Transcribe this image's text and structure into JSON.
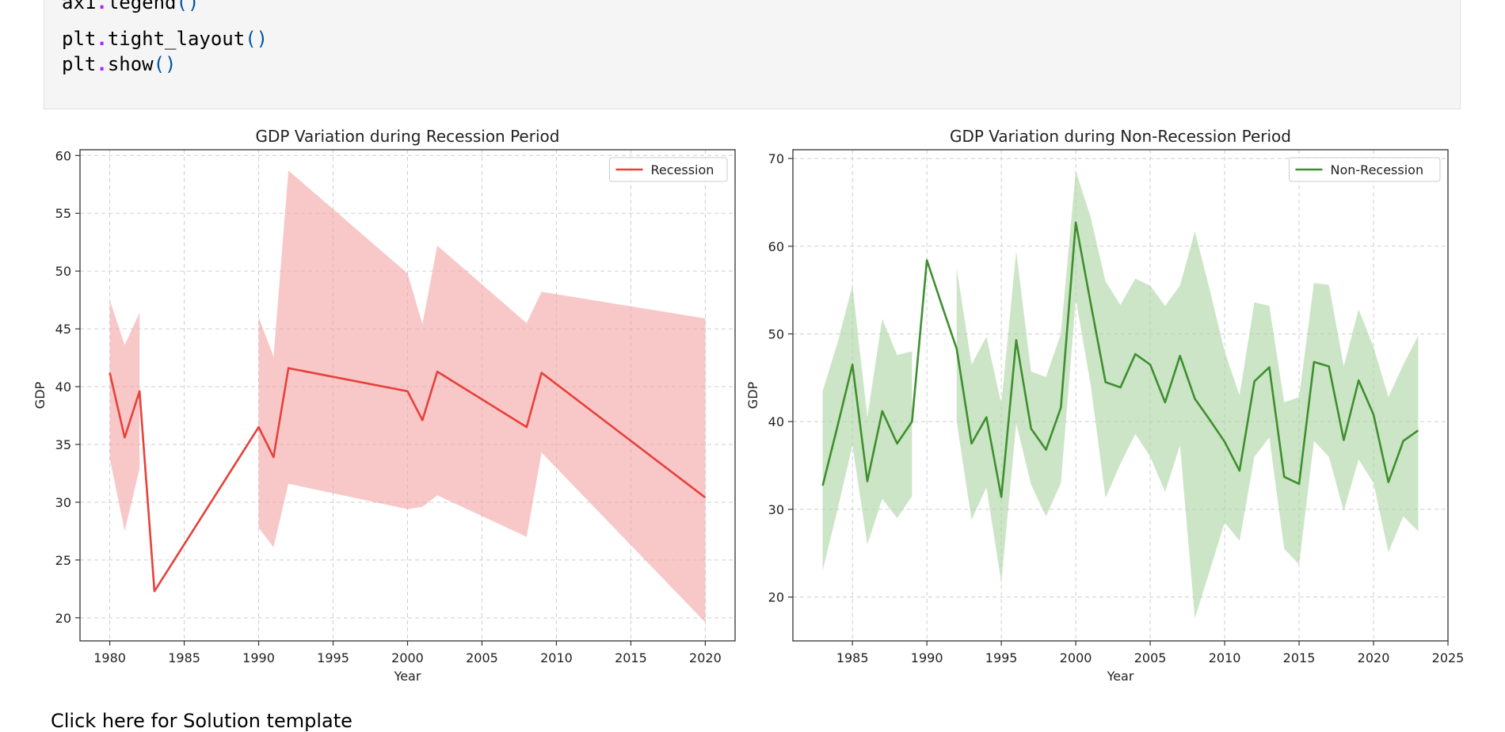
{
  "code": {
    "lines": [
      {
        "obj": "ax1",
        "method": "legend"
      },
      {
        "obj": "",
        "method": ""
      },
      {
        "obj": "plt",
        "method": "tight_layout"
      },
      {
        "obj": "plt",
        "method": "show"
      }
    ]
  },
  "footer": {
    "text": "Click here for Solution template"
  },
  "chart_data": [
    {
      "type": "line",
      "title": "GDP Variation during Recession Period",
      "xlabel": "Year",
      "ylabel": "GDP",
      "legend": {
        "entries": [
          "Recession"
        ],
        "placement": "top-right"
      },
      "grid": true,
      "xlim": [
        1978,
        2022
      ],
      "ylim": [
        18,
        60.5
      ],
      "xticks": [
        1980,
        1985,
        1990,
        1995,
        2000,
        2005,
        2010,
        2015,
        2020
      ],
      "yticks": [
        20,
        25,
        30,
        35,
        40,
        45,
        50,
        55,
        60
      ],
      "color": "#e8403a",
      "band_color": "#f4a3a3",
      "x": [
        1980,
        1981,
        1982,
        1983,
        1990,
        1991,
        1992,
        2000,
        2001,
        2002,
        2008,
        2009,
        2020
      ],
      "values": [
        41.2,
        35.6,
        39.6,
        22.3,
        36.5,
        33.9,
        41.6,
        39.6,
        37.1,
        41.3,
        36.5,
        41.2,
        30.4
      ],
      "band_upper": [
        47.5,
        43.6,
        46.4,
        null,
        46.0,
        42.6,
        58.7,
        49.8,
        45.4,
        52.2,
        45.5,
        48.2,
        45.9
      ],
      "band_lower": [
        33.8,
        27.5,
        32.9,
        null,
        27.8,
        26.1,
        31.6,
        29.4,
        29.6,
        30.6,
        27.0,
        34.3,
        19.6
      ]
    },
    {
      "type": "line",
      "title": "GDP Variation during Non-Recession Period",
      "xlabel": "Year",
      "ylabel": "GDP",
      "legend": {
        "entries": [
          "Non-Recession"
        ],
        "placement": "top-right"
      },
      "grid": true,
      "xlim": [
        1981,
        2025
      ],
      "ylim": [
        15,
        71
      ],
      "xticks": [
        1985,
        1990,
        1995,
        2000,
        2005,
        2010,
        2015,
        2020,
        2025
      ],
      "yticks": [
        20,
        30,
        40,
        50,
        60,
        70
      ],
      "color": "#3f8f2f",
      "band_color": "#a9d3a0",
      "x": [
        1983,
        1984,
        1985,
        1986,
        1987,
        1988,
        1989,
        1990,
        1991,
        1992,
        1993,
        1994,
        1995,
        1996,
        1997,
        1998,
        1999,
        2000,
        2001,
        2002,
        2003,
        2004,
        2005,
        2006,
        2007,
        2008,
        2009,
        2010,
        2011,
        2012,
        2013,
        2014,
        2015,
        2016,
        2017,
        2018,
        2019,
        2020,
        2021,
        2022,
        2023
      ],
      "values": [
        32.7,
        39.5,
        46.5,
        33.2,
        41.2,
        37.5,
        40.0,
        58.4,
        53.3,
        48.3,
        37.5,
        40.5,
        31.4,
        49.3,
        39.2,
        36.8,
        41.6,
        62.7,
        53.5,
        44.5,
        43.9,
        47.7,
        46.5,
        42.2,
        47.5,
        42.6,
        40.2,
        37.7,
        34.4,
        44.6,
        46.2,
        33.7,
        32.9,
        46.8,
        46.3,
        37.9,
        44.7,
        40.8,
        33.1,
        37.8,
        39.0
      ],
      "band_upper": [
        43.5,
        49.0,
        55.5,
        40.5,
        51.7,
        47.6,
        48.0,
        null,
        null,
        57.5,
        46.5,
        49.7,
        42.0,
        59.4,
        45.7,
        45.1,
        50.0,
        68.6,
        63.3,
        56.0,
        53.3,
        56.3,
        55.5,
        53.2,
        55.5,
        61.7,
        55.0,
        48.0,
        43.0,
        53.6,
        53.2,
        42.2,
        42.8,
        55.8,
        55.6,
        46.3,
        52.8,
        48.5,
        42.8,
        46.5,
        49.8
      ],
      "band_lower": [
        23.0,
        30.0,
        37.3,
        26.0,
        31.2,
        29.0,
        31.5,
        null,
        null,
        40.0,
        28.8,
        32.5,
        21.7,
        39.8,
        32.8,
        29.2,
        33.0,
        54.0,
        44.2,
        31.3,
        35.2,
        38.6,
        36.0,
        32.0,
        37.3,
        17.6,
        23.0,
        28.5,
        26.4,
        36.0,
        38.2,
        25.5,
        23.7,
        37.8,
        36.0,
        29.8,
        35.7,
        33.0,
        25.1,
        29.2,
        27.5
      ]
    }
  ]
}
